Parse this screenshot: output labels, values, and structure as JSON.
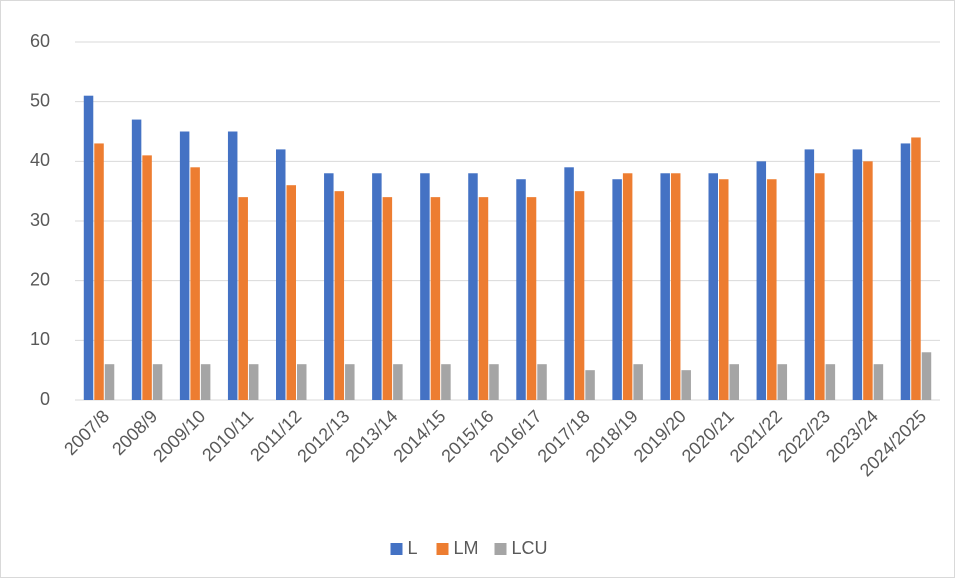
{
  "chart_data": {
    "type": "bar",
    "categories": [
      "2007/8",
      "2008/9",
      "2009/10",
      "2010/11",
      "2011/12",
      "2012/13",
      "2013/14",
      "2014/15",
      "2015/16",
      "2016/17",
      "2017/18",
      "2018/19",
      "2019/20",
      "2020/21",
      "2021/22",
      "2022/23",
      "2023/24",
      "2024/2025"
    ],
    "series": [
      {
        "name": "L",
        "color": "#4472c4",
        "values": [
          51,
          47,
          45,
          45,
          42,
          38,
          38,
          38,
          38,
          37,
          39,
          37,
          38,
          38,
          40,
          42,
          42,
          43
        ]
      },
      {
        "name": "LM",
        "color": "#ed7d31",
        "values": [
          43,
          41,
          39,
          34,
          36,
          35,
          34,
          34,
          34,
          34,
          35,
          38,
          38,
          37,
          37,
          38,
          40,
          44
        ]
      },
      {
        "name": "LCU",
        "color": "#a5a5a5",
        "values": [
          6,
          6,
          6,
          6,
          6,
          6,
          6,
          6,
          6,
          6,
          5,
          6,
          5,
          6,
          6,
          6,
          6,
          8
        ]
      }
    ],
    "ylim": [
      0,
      60
    ],
    "yticks": [
      0,
      10,
      20,
      30,
      40,
      50,
      60
    ],
    "grid": true,
    "legend": "bottom"
  }
}
